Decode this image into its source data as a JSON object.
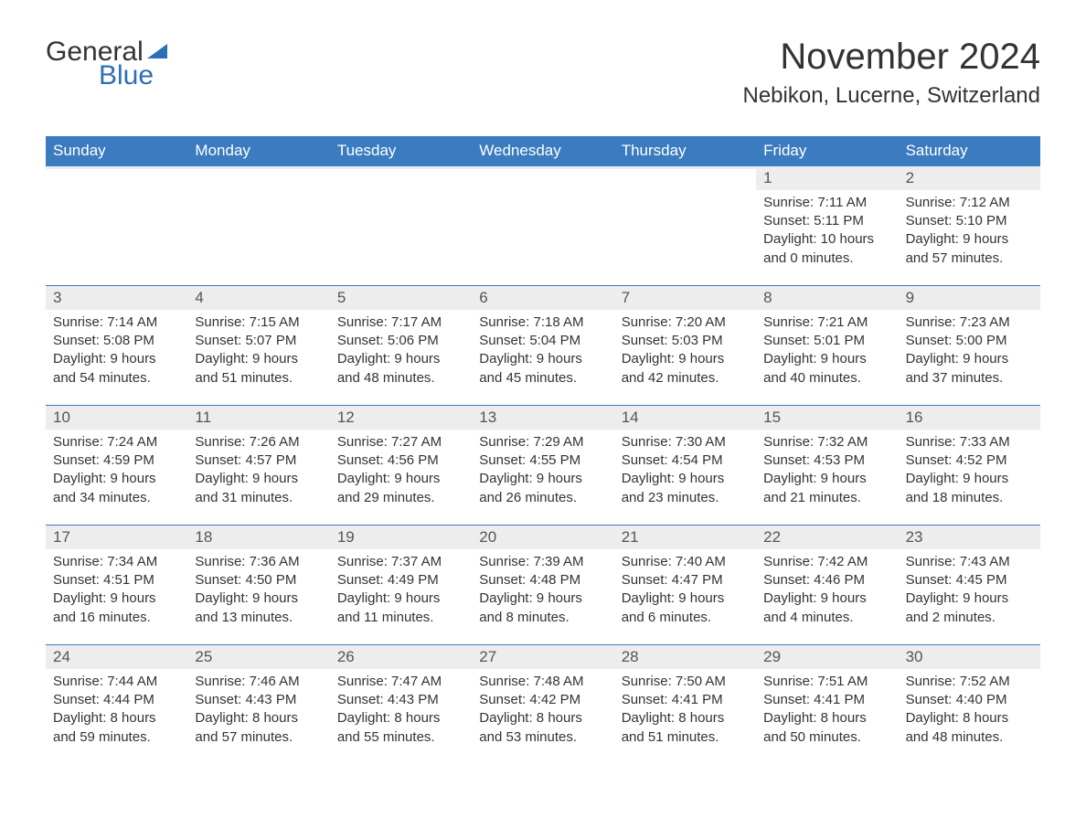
{
  "logo": {
    "text_general": "General",
    "text_blue": "Blue"
  },
  "title": {
    "month": "November 2024",
    "location": "Nebikon, Lucerne, Switzerland"
  },
  "colors": {
    "header_bg": "#3b7bbf",
    "header_text": "#ffffff",
    "daynum_bg": "#ededed",
    "daynum_text": "#555555",
    "body_text": "#333333",
    "accent_blue": "#2d6fb5",
    "rule": "#3b7bbf",
    "page_bg": "#ffffff"
  },
  "typography": {
    "month_title_fontsize_pt": 30,
    "location_fontsize_pt": 18,
    "weekday_fontsize_pt": 13,
    "daynum_fontsize_pt": 13,
    "body_fontsize_pt": 11,
    "font_family": "Arial"
  },
  "weekdays": [
    "Sunday",
    "Monday",
    "Tuesday",
    "Wednesday",
    "Thursday",
    "Friday",
    "Saturday"
  ],
  "weeks": [
    [
      {
        "empty": true
      },
      {
        "empty": true
      },
      {
        "empty": true
      },
      {
        "empty": true
      },
      {
        "empty": true
      },
      {
        "day": "1",
        "sunrise": "Sunrise: 7:11 AM",
        "sunset": "Sunset: 5:11 PM",
        "daylight": "Daylight: 10 hours and 0 minutes."
      },
      {
        "day": "2",
        "sunrise": "Sunrise: 7:12 AM",
        "sunset": "Sunset: 5:10 PM",
        "daylight": "Daylight: 9 hours and 57 minutes."
      }
    ],
    [
      {
        "day": "3",
        "sunrise": "Sunrise: 7:14 AM",
        "sunset": "Sunset: 5:08 PM",
        "daylight": "Daylight: 9 hours and 54 minutes."
      },
      {
        "day": "4",
        "sunrise": "Sunrise: 7:15 AM",
        "sunset": "Sunset: 5:07 PM",
        "daylight": "Daylight: 9 hours and 51 minutes."
      },
      {
        "day": "5",
        "sunrise": "Sunrise: 7:17 AM",
        "sunset": "Sunset: 5:06 PM",
        "daylight": "Daylight: 9 hours and 48 minutes."
      },
      {
        "day": "6",
        "sunrise": "Sunrise: 7:18 AM",
        "sunset": "Sunset: 5:04 PM",
        "daylight": "Daylight: 9 hours and 45 minutes."
      },
      {
        "day": "7",
        "sunrise": "Sunrise: 7:20 AM",
        "sunset": "Sunset: 5:03 PM",
        "daylight": "Daylight: 9 hours and 42 minutes."
      },
      {
        "day": "8",
        "sunrise": "Sunrise: 7:21 AM",
        "sunset": "Sunset: 5:01 PM",
        "daylight": "Daylight: 9 hours and 40 minutes."
      },
      {
        "day": "9",
        "sunrise": "Sunrise: 7:23 AM",
        "sunset": "Sunset: 5:00 PM",
        "daylight": "Daylight: 9 hours and 37 minutes."
      }
    ],
    [
      {
        "day": "10",
        "sunrise": "Sunrise: 7:24 AM",
        "sunset": "Sunset: 4:59 PM",
        "daylight": "Daylight: 9 hours and 34 minutes."
      },
      {
        "day": "11",
        "sunrise": "Sunrise: 7:26 AM",
        "sunset": "Sunset: 4:57 PM",
        "daylight": "Daylight: 9 hours and 31 minutes."
      },
      {
        "day": "12",
        "sunrise": "Sunrise: 7:27 AM",
        "sunset": "Sunset: 4:56 PM",
        "daylight": "Daylight: 9 hours and 29 minutes."
      },
      {
        "day": "13",
        "sunrise": "Sunrise: 7:29 AM",
        "sunset": "Sunset: 4:55 PM",
        "daylight": "Daylight: 9 hours and 26 minutes."
      },
      {
        "day": "14",
        "sunrise": "Sunrise: 7:30 AM",
        "sunset": "Sunset: 4:54 PM",
        "daylight": "Daylight: 9 hours and 23 minutes."
      },
      {
        "day": "15",
        "sunrise": "Sunrise: 7:32 AM",
        "sunset": "Sunset: 4:53 PM",
        "daylight": "Daylight: 9 hours and 21 minutes."
      },
      {
        "day": "16",
        "sunrise": "Sunrise: 7:33 AM",
        "sunset": "Sunset: 4:52 PM",
        "daylight": "Daylight: 9 hours and 18 minutes."
      }
    ],
    [
      {
        "day": "17",
        "sunrise": "Sunrise: 7:34 AM",
        "sunset": "Sunset: 4:51 PM",
        "daylight": "Daylight: 9 hours and 16 minutes."
      },
      {
        "day": "18",
        "sunrise": "Sunrise: 7:36 AM",
        "sunset": "Sunset: 4:50 PM",
        "daylight": "Daylight: 9 hours and 13 minutes."
      },
      {
        "day": "19",
        "sunrise": "Sunrise: 7:37 AM",
        "sunset": "Sunset: 4:49 PM",
        "daylight": "Daylight: 9 hours and 11 minutes."
      },
      {
        "day": "20",
        "sunrise": "Sunrise: 7:39 AM",
        "sunset": "Sunset: 4:48 PM",
        "daylight": "Daylight: 9 hours and 8 minutes."
      },
      {
        "day": "21",
        "sunrise": "Sunrise: 7:40 AM",
        "sunset": "Sunset: 4:47 PM",
        "daylight": "Daylight: 9 hours and 6 minutes."
      },
      {
        "day": "22",
        "sunrise": "Sunrise: 7:42 AM",
        "sunset": "Sunset: 4:46 PM",
        "daylight": "Daylight: 9 hours and 4 minutes."
      },
      {
        "day": "23",
        "sunrise": "Sunrise: 7:43 AM",
        "sunset": "Sunset: 4:45 PM",
        "daylight": "Daylight: 9 hours and 2 minutes."
      }
    ],
    [
      {
        "day": "24",
        "sunrise": "Sunrise: 7:44 AM",
        "sunset": "Sunset: 4:44 PM",
        "daylight": "Daylight: 8 hours and 59 minutes."
      },
      {
        "day": "25",
        "sunrise": "Sunrise: 7:46 AM",
        "sunset": "Sunset: 4:43 PM",
        "daylight": "Daylight: 8 hours and 57 minutes."
      },
      {
        "day": "26",
        "sunrise": "Sunrise: 7:47 AM",
        "sunset": "Sunset: 4:43 PM",
        "daylight": "Daylight: 8 hours and 55 minutes."
      },
      {
        "day": "27",
        "sunrise": "Sunrise: 7:48 AM",
        "sunset": "Sunset: 4:42 PM",
        "daylight": "Daylight: 8 hours and 53 minutes."
      },
      {
        "day": "28",
        "sunrise": "Sunrise: 7:50 AM",
        "sunset": "Sunset: 4:41 PM",
        "daylight": "Daylight: 8 hours and 51 minutes."
      },
      {
        "day": "29",
        "sunrise": "Sunrise: 7:51 AM",
        "sunset": "Sunset: 4:41 PM",
        "daylight": "Daylight: 8 hours and 50 minutes."
      },
      {
        "day": "30",
        "sunrise": "Sunrise: 7:52 AM",
        "sunset": "Sunset: 4:40 PM",
        "daylight": "Daylight: 8 hours and 48 minutes."
      }
    ]
  ]
}
